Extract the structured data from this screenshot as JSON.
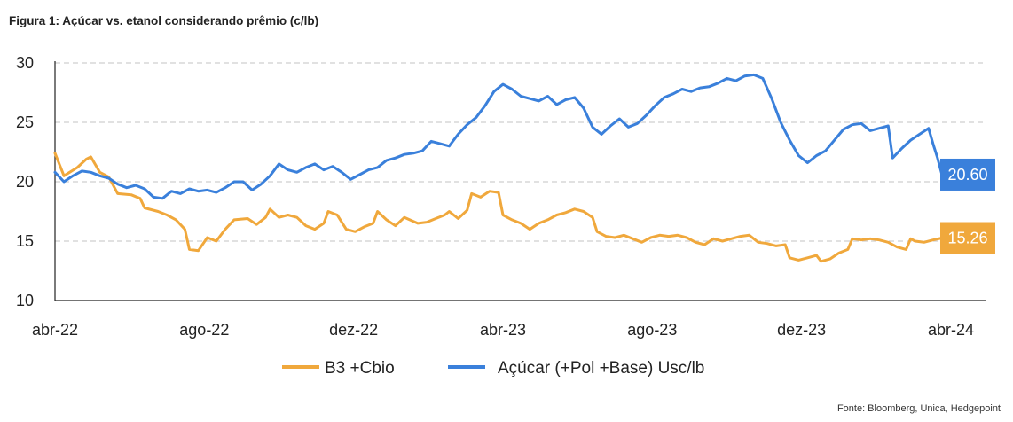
{
  "title": "Figura 1: Açúcar vs. etanol considerando prêmio (c/lb)",
  "source": "Fonte: Bloomberg, Unica, Hedgepoint",
  "chart_data": {
    "type": "line",
    "title": "Figura 1: Açúcar vs. etanol considerando prêmio (c/lb)",
    "xlabel": "",
    "ylabel": "",
    "x_range": [
      2022.25,
      2024.25
    ],
    "ylim": [
      10,
      30
    ],
    "y_ticks": [
      "10",
      "15",
      "20",
      "25",
      "30"
    ],
    "x_ticks": [
      {
        "label": "abr-22",
        "t": 2022.25
      },
      {
        "label": "ago-22",
        "t": 2022.5833
      },
      {
        "label": "dez-22",
        "t": 2022.9167
      },
      {
        "label": "abr-23",
        "t": 2023.25
      },
      {
        "label": "ago-23",
        "t": 2023.5833
      },
      {
        "label": "dez-23",
        "t": 2023.9167
      },
      {
        "label": "abr-24",
        "t": 2024.25
      }
    ],
    "grid": "horizontal dashed",
    "legend_position": "bottom",
    "series": [
      {
        "name": "B3 +Cbio",
        "color": "#F0A83C",
        "end_label": "15.26",
        "points": [
          [
            2022.25,
            22.4
          ],
          [
            2022.27,
            20.5
          ],
          [
            2022.3,
            21.2
          ],
          [
            2022.32,
            21.9
          ],
          [
            2022.33,
            22.1
          ],
          [
            2022.35,
            20.8
          ],
          [
            2022.37,
            20.4
          ],
          [
            2022.39,
            19.0
          ],
          [
            2022.42,
            18.9
          ],
          [
            2022.44,
            18.6
          ],
          [
            2022.45,
            17.8
          ],
          [
            2022.48,
            17.5
          ],
          [
            2022.5,
            17.2
          ],
          [
            2022.52,
            16.8
          ],
          [
            2022.54,
            16.0
          ],
          [
            2022.55,
            14.3
          ],
          [
            2022.57,
            14.2
          ],
          [
            2022.59,
            15.3
          ],
          [
            2022.61,
            15.0
          ],
          [
            2022.63,
            16.0
          ],
          [
            2022.65,
            16.8
          ],
          [
            2022.68,
            16.9
          ],
          [
            2022.7,
            16.4
          ],
          [
            2022.72,
            17.0
          ],
          [
            2022.73,
            17.7
          ],
          [
            2022.75,
            17.0
          ],
          [
            2022.77,
            17.2
          ],
          [
            2022.79,
            17.0
          ],
          [
            2022.81,
            16.3
          ],
          [
            2022.83,
            16.0
          ],
          [
            2022.85,
            16.5
          ],
          [
            2022.86,
            17.5
          ],
          [
            2022.88,
            17.2
          ],
          [
            2022.9,
            16.0
          ],
          [
            2022.92,
            15.8
          ],
          [
            2022.94,
            16.2
          ],
          [
            2022.96,
            16.5
          ],
          [
            2022.97,
            17.5
          ],
          [
            2022.99,
            16.8
          ],
          [
            2023.01,
            16.3
          ],
          [
            2023.03,
            17.0
          ],
          [
            2023.06,
            16.5
          ],
          [
            2023.08,
            16.6
          ],
          [
            2023.1,
            16.9
          ],
          [
            2023.12,
            17.2
          ],
          [
            2023.13,
            17.5
          ],
          [
            2023.15,
            16.9
          ],
          [
            2023.17,
            17.6
          ],
          [
            2023.18,
            19.0
          ],
          [
            2023.2,
            18.7
          ],
          [
            2023.22,
            19.2
          ],
          [
            2023.24,
            19.1
          ],
          [
            2023.25,
            17.2
          ],
          [
            2023.27,
            16.8
          ],
          [
            2023.29,
            16.5
          ],
          [
            2023.31,
            16.0
          ],
          [
            2023.33,
            16.5
          ],
          [
            2023.35,
            16.8
          ],
          [
            2023.37,
            17.2
          ],
          [
            2023.39,
            17.4
          ],
          [
            2023.41,
            17.7
          ],
          [
            2023.43,
            17.5
          ],
          [
            2023.45,
            17.0
          ],
          [
            2023.46,
            15.8
          ],
          [
            2023.48,
            15.4
          ],
          [
            2023.5,
            15.3
          ],
          [
            2023.52,
            15.5
          ],
          [
            2023.54,
            15.2
          ],
          [
            2023.56,
            14.9
          ],
          [
            2023.58,
            15.3
          ],
          [
            2023.6,
            15.5
          ],
          [
            2023.62,
            15.4
          ],
          [
            2023.64,
            15.5
          ],
          [
            2023.66,
            15.3
          ],
          [
            2023.68,
            14.9
          ],
          [
            2023.7,
            14.7
          ],
          [
            2023.72,
            15.2
          ],
          [
            2023.74,
            15.0
          ],
          [
            2023.76,
            15.2
          ],
          [
            2023.78,
            15.4
          ],
          [
            2023.8,
            15.5
          ],
          [
            2023.82,
            14.9
          ],
          [
            2023.84,
            14.8
          ],
          [
            2023.86,
            14.6
          ],
          [
            2023.88,
            14.7
          ],
          [
            2023.89,
            13.6
          ],
          [
            2023.91,
            13.4
          ],
          [
            2023.93,
            13.6
          ],
          [
            2023.95,
            13.8
          ],
          [
            2023.96,
            13.3
          ],
          [
            2023.98,
            13.5
          ],
          [
            2024.0,
            14.0
          ],
          [
            2024.02,
            14.3
          ],
          [
            2024.03,
            15.2
          ],
          [
            2024.05,
            15.1
          ],
          [
            2024.07,
            15.2
          ],
          [
            2024.09,
            15.1
          ],
          [
            2024.11,
            14.9
          ],
          [
            2024.13,
            14.5
          ],
          [
            2024.15,
            14.3
          ],
          [
            2024.16,
            15.2
          ],
          [
            2024.17,
            15.0
          ],
          [
            2024.19,
            14.9
          ],
          [
            2024.21,
            15.1
          ],
          [
            2024.23,
            15.26
          ]
        ]
      },
      {
        "name": "Açúcar (+Pol +Base) Usc/lb",
        "color": "#3A80DB",
        "end_label": "20.60",
        "points": [
          [
            2022.25,
            20.8
          ],
          [
            2022.27,
            20.0
          ],
          [
            2022.29,
            20.5
          ],
          [
            2022.31,
            20.9
          ],
          [
            2022.33,
            20.8
          ],
          [
            2022.35,
            20.5
          ],
          [
            2022.37,
            20.3
          ],
          [
            2022.39,
            19.8
          ],
          [
            2022.41,
            19.5
          ],
          [
            2022.43,
            19.7
          ],
          [
            2022.45,
            19.4
          ],
          [
            2022.47,
            18.7
          ],
          [
            2022.49,
            18.6
          ],
          [
            2022.51,
            19.2
          ],
          [
            2022.53,
            19.0
          ],
          [
            2022.55,
            19.4
          ],
          [
            2022.57,
            19.2
          ],
          [
            2022.59,
            19.3
          ],
          [
            2022.61,
            19.1
          ],
          [
            2022.63,
            19.5
          ],
          [
            2022.65,
            20.0
          ],
          [
            2022.67,
            20.0
          ],
          [
            2022.69,
            19.3
          ],
          [
            2022.71,
            19.8
          ],
          [
            2022.73,
            20.5
          ],
          [
            2022.75,
            21.5
          ],
          [
            2022.77,
            21.0
          ],
          [
            2022.79,
            20.8
          ],
          [
            2022.81,
            21.2
          ],
          [
            2022.83,
            21.5
          ],
          [
            2022.85,
            21.0
          ],
          [
            2022.87,
            21.3
          ],
          [
            2022.89,
            20.8
          ],
          [
            2022.91,
            20.2
          ],
          [
            2022.93,
            20.6
          ],
          [
            2022.95,
            21.0
          ],
          [
            2022.97,
            21.2
          ],
          [
            2022.99,
            21.8
          ],
          [
            2023.01,
            22.0
          ],
          [
            2023.03,
            22.3
          ],
          [
            2023.05,
            22.4
          ],
          [
            2023.07,
            22.6
          ],
          [
            2023.09,
            23.4
          ],
          [
            2023.11,
            23.2
          ],
          [
            2023.13,
            23.0
          ],
          [
            2023.15,
            24.0
          ],
          [
            2023.17,
            24.8
          ],
          [
            2023.19,
            25.4
          ],
          [
            2023.21,
            26.4
          ],
          [
            2023.23,
            27.6
          ],
          [
            2023.25,
            28.2
          ],
          [
            2023.27,
            27.8
          ],
          [
            2023.29,
            27.2
          ],
          [
            2023.31,
            27.0
          ],
          [
            2023.33,
            26.8
          ],
          [
            2023.35,
            27.2
          ],
          [
            2023.37,
            26.5
          ],
          [
            2023.39,
            26.9
          ],
          [
            2023.41,
            27.1
          ],
          [
            2023.43,
            26.2
          ],
          [
            2023.45,
            24.6
          ],
          [
            2023.47,
            24.0
          ],
          [
            2023.49,
            24.7
          ],
          [
            2023.51,
            25.3
          ],
          [
            2023.53,
            24.6
          ],
          [
            2023.55,
            24.9
          ],
          [
            2023.57,
            25.6
          ],
          [
            2023.59,
            26.4
          ],
          [
            2023.61,
            27.1
          ],
          [
            2023.63,
            27.4
          ],
          [
            2023.65,
            27.8
          ],
          [
            2023.67,
            27.6
          ],
          [
            2023.69,
            27.9
          ],
          [
            2023.71,
            28.0
          ],
          [
            2023.73,
            28.3
          ],
          [
            2023.75,
            28.7
          ],
          [
            2023.77,
            28.5
          ],
          [
            2023.79,
            28.9
          ],
          [
            2023.81,
            29.0
          ],
          [
            2023.83,
            28.7
          ],
          [
            2023.85,
            27.0
          ],
          [
            2023.87,
            25.0
          ],
          [
            2023.89,
            23.5
          ],
          [
            2023.91,
            22.2
          ],
          [
            2023.93,
            21.6
          ],
          [
            2023.95,
            22.2
          ],
          [
            2023.97,
            22.6
          ],
          [
            2023.99,
            23.5
          ],
          [
            2024.01,
            24.4
          ],
          [
            2024.03,
            24.8
          ],
          [
            2024.05,
            24.9
          ],
          [
            2024.07,
            24.3
          ],
          [
            2024.09,
            24.5
          ],
          [
            2024.11,
            24.7
          ],
          [
            2024.12,
            22.0
          ],
          [
            2024.14,
            22.8
          ],
          [
            2024.16,
            23.5
          ],
          [
            2024.18,
            24.0
          ],
          [
            2024.2,
            24.5
          ],
          [
            2024.21,
            23.2
          ],
          [
            2024.22,
            22.0
          ],
          [
            2024.23,
            20.6
          ]
        ]
      }
    ]
  }
}
